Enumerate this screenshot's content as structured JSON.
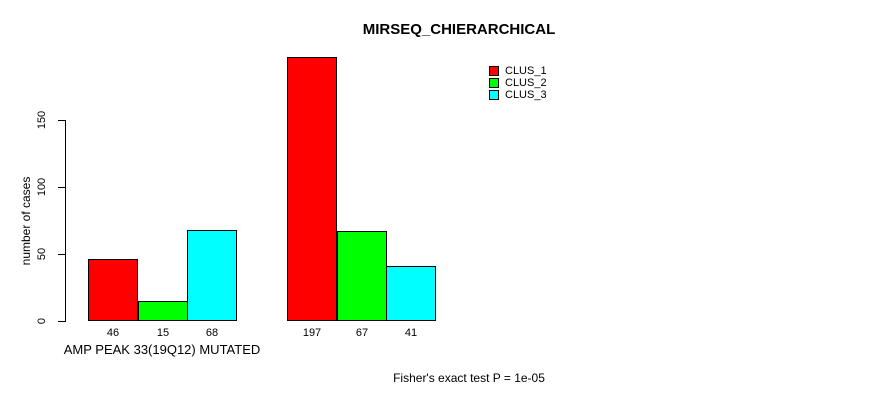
{
  "title": "MIRSEQ_CHIERARCHICAL",
  "chart_data": {
    "type": "bar",
    "title": "MIRSEQ_CHIERARCHICAL",
    "categories": [
      "AMP PEAK 33(19Q12) MUTATED",
      ""
    ],
    "series": [
      {
        "name": "CLUS_1",
        "color": "#ff0000",
        "values": [
          46,
          197
        ]
      },
      {
        "name": "CLUS_2",
        "color": "#00ff00",
        "values": [
          15,
          67
        ]
      },
      {
        "name": "CLUS_3",
        "color": "#00ffff",
        "values": [
          68,
          41
        ]
      }
    ],
    "xlabel": "",
    "ylabel": "number of cases",
    "yticks": [
      0,
      50,
      100,
      150
    ],
    "ylim": [
      0,
      200
    ],
    "grid": false,
    "legend_position": "top-right",
    "bar_value_labels": [
      [
        46,
        15,
        68
      ],
      [
        197,
        67,
        41
      ]
    ],
    "annotation": "Fisher's exact test P = 1e-05"
  },
  "annotation": {
    "fisher_text": "Fisher's exact test P = 1e-05"
  },
  "colors": {
    "background": "#ffffff",
    "axis": "#000000",
    "text": "#000000"
  }
}
